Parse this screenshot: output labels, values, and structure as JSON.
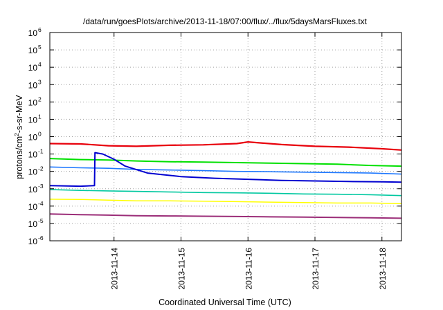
{
  "chart_data": {
    "type": "line",
    "title": "/data/run/goesPlots/archive/2013-11-18/07:00/flux/../flux/5daysMarsFluxes.txt",
    "xlabel": "Coordinated Universal Time (UTC)",
    "ylabel": {
      "base": "protons/cm",
      "sup": "2",
      "rest": "-s-sr-MeV"
    },
    "yscale": "log",
    "ylim": [
      1e-06,
      1000000.0
    ],
    "xlim": [
      "2013-11-13T01:00",
      "2013-11-18T07:00"
    ],
    "grid": true,
    "legend": "none",
    "y_ticks": [
      {
        "value": 1e-06,
        "base": "10",
        "exp": "-6"
      },
      {
        "value": 1e-05,
        "base": "10",
        "exp": "-5"
      },
      {
        "value": 0.0001,
        "base": "10",
        "exp": "-4"
      },
      {
        "value": 0.001,
        "base": "10",
        "exp": "-3"
      },
      {
        "value": 0.01,
        "base": "10",
        "exp": "-2"
      },
      {
        "value": 0.1,
        "base": "10",
        "exp": "-1"
      },
      {
        "value": 1.0,
        "base": "10",
        "exp": "0"
      },
      {
        "value": 10.0,
        "base": "10",
        "exp": "1"
      },
      {
        "value": 100.0,
        "base": "10",
        "exp": "2"
      },
      {
        "value": 1000.0,
        "base": "10",
        "exp": "3"
      },
      {
        "value": 10000.0,
        "base": "10",
        "exp": "4"
      },
      {
        "value": 100000.0,
        "base": "10",
        "exp": "5"
      },
      {
        "value": 1000000.0,
        "base": "10",
        "exp": "6"
      }
    ],
    "x_ticks": [
      {
        "value": "2013-11-14T00:00",
        "label": "2013-11-14"
      },
      {
        "value": "2013-11-15T00:00",
        "label": "2013-11-15"
      },
      {
        "value": "2013-11-16T00:00",
        "label": "2013-11-16"
      },
      {
        "value": "2013-11-17T00:00",
        "label": "2013-11-17"
      },
      {
        "value": "2013-11-18T00:00",
        "label": "2013-11-18"
      }
    ],
    "series": [
      {
        "color": "#e8000b",
        "stroke_width": 2.2,
        "x": [
          "2013-11-13T01:00",
          "2013-11-13T12:00",
          "2013-11-13T22:00",
          "2013-11-14T08:00",
          "2013-11-14T20:00",
          "2013-11-15T08:00",
          "2013-11-15T20:00",
          "2013-11-16T00:00",
          "2013-11-16T12:00",
          "2013-11-17T00:00",
          "2013-11-17T12:00",
          "2013-11-18T00:00",
          "2013-11-18T07:00"
        ],
        "y": [
          0.4,
          0.38,
          0.3,
          0.28,
          0.32,
          0.34,
          0.4,
          0.5,
          0.35,
          0.28,
          0.25,
          0.2,
          0.17
        ]
      },
      {
        "color": "#00e000",
        "stroke_width": 2,
        "x": [
          "2013-11-13T01:00",
          "2013-11-13T12:00",
          "2013-11-13T22:00",
          "2013-11-14T08:00",
          "2013-11-14T20:00",
          "2013-11-15T08:00",
          "2013-11-15T20:00",
          "2013-11-16T08:00",
          "2013-11-16T20:00",
          "2013-11-17T08:00",
          "2013-11-17T20:00",
          "2013-11-18T07:00"
        ],
        "y": [
          0.055,
          0.048,
          0.045,
          0.04,
          0.036,
          0.034,
          0.032,
          0.03,
          0.028,
          0.026,
          0.022,
          0.02
        ]
      },
      {
        "color": "#1e78ff",
        "stroke_width": 1.6,
        "x": [
          "2013-11-13T01:00",
          "2013-11-13T12:00",
          "2013-11-13T22:00",
          "2013-11-14T08:00",
          "2013-11-14T20:00",
          "2013-11-15T08:00",
          "2013-11-15T20:00",
          "2013-11-16T08:00",
          "2013-11-16T20:00",
          "2013-11-17T08:00",
          "2013-11-17T20:00",
          "2013-11-18T07:00"
        ],
        "y": [
          0.018,
          0.016,
          0.015,
          0.013,
          0.012,
          0.011,
          0.01,
          0.0095,
          0.009,
          0.0085,
          0.008,
          0.007
        ]
      },
      {
        "color": "#0000d0",
        "stroke_width": 2,
        "x": [
          "2013-11-13T01:00",
          "2013-11-13T12:00",
          "2013-11-13T17:00",
          "2013-11-13T17:10",
          "2013-11-13T20:00",
          "2013-11-14T00:00",
          "2013-11-14T04:00",
          "2013-11-14T12:00",
          "2013-11-15T00:00",
          "2013-11-15T12:00",
          "2013-11-16T00:00",
          "2013-11-16T12:00",
          "2013-11-17T00:00",
          "2013-11-17T12:00",
          "2013-11-18T00:00",
          "2013-11-18T07:00"
        ],
        "y": [
          0.0015,
          0.0014,
          0.0015,
          0.12,
          0.1,
          0.05,
          0.02,
          0.008,
          0.005,
          0.004,
          0.0035,
          0.003,
          0.0028,
          0.0026,
          0.0025,
          0.0024
        ]
      },
      {
        "color": "#00c8a0",
        "stroke_width": 1.6,
        "x": [
          "2013-11-13T01:00",
          "2013-11-13T12:00",
          "2013-11-13T22:00",
          "2013-11-14T08:00",
          "2013-11-14T20:00",
          "2013-11-15T08:00",
          "2013-11-15T20:00",
          "2013-11-16T08:00",
          "2013-11-16T20:00",
          "2013-11-17T08:00",
          "2013-11-17T20:00",
          "2013-11-18T07:00"
        ],
        "y": [
          0.0009,
          0.0008,
          0.00075,
          0.0007,
          0.00065,
          0.0006,
          0.00058,
          0.00055,
          0.0005,
          0.00048,
          0.00045,
          0.0004
        ]
      },
      {
        "color": "#ffff00",
        "stroke_width": 1.5,
        "x": [
          "2013-11-13T01:00",
          "2013-11-13T12:00",
          "2013-11-13T22:00",
          "2013-11-14T08:00",
          "2013-11-14T20:00",
          "2013-11-15T08:00",
          "2013-11-15T20:00",
          "2013-11-16T08:00",
          "2013-11-16T20:00",
          "2013-11-17T08:00",
          "2013-11-17T20:00",
          "2013-11-18T07:00"
        ],
        "y": [
          0.00025,
          0.00024,
          0.00022,
          0.0002,
          0.0002,
          0.00019,
          0.00018,
          0.00017,
          0.00016,
          0.00015,
          0.00015,
          0.00014
        ]
      },
      {
        "color": "#9b2d78",
        "stroke_width": 2,
        "x": [
          "2013-11-13T01:00",
          "2013-11-13T12:00",
          "2013-11-13T22:00",
          "2013-11-14T08:00",
          "2013-11-14T20:00",
          "2013-11-15T08:00",
          "2013-11-15T20:00",
          "2013-11-16T08:00",
          "2013-11-16T20:00",
          "2013-11-17T08:00",
          "2013-11-17T20:00",
          "2013-11-18T07:00"
        ],
        "y": [
          3.5e-05,
          3.2e-05,
          3e-05,
          2.8e-05,
          2.7e-05,
          2.6e-05,
          2.5e-05,
          2.4e-05,
          2.3e-05,
          2.2e-05,
          2.1e-05,
          2e-05
        ]
      }
    ]
  }
}
